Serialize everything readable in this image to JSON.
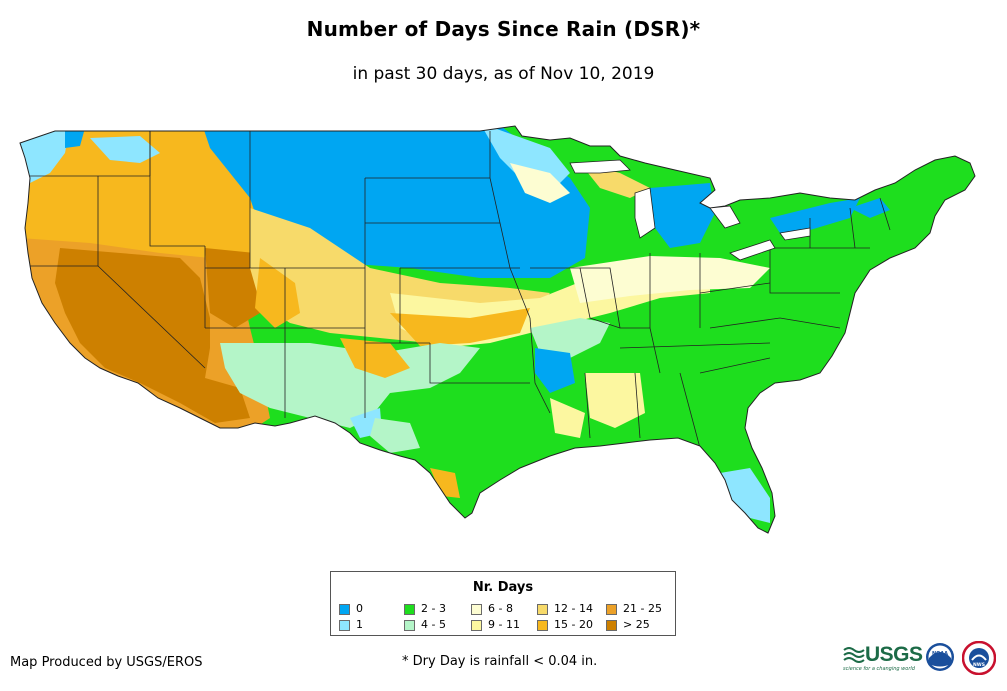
{
  "title": "Number of Days Since Rain (DSR)*",
  "subtitle": "in past 30 days, as of Nov 10, 2019",
  "legend": {
    "title": "Nr. Days",
    "items": [
      {
        "label": "0",
        "color": "#00a6f2"
      },
      {
        "label": "1",
        "color": "#8ee6ff"
      },
      {
        "label": "2 - 3",
        "color": "#1ede1e"
      },
      {
        "label": "4 - 5",
        "color": "#b4f5c8"
      },
      {
        "label": "6 - 8",
        "color": "#fdfdd2"
      },
      {
        "label": "9 - 11",
        "color": "#fcf7a0"
      },
      {
        "label": "12 - 14",
        "color": "#f7da6a"
      },
      {
        "label": "15 - 20",
        "color": "#f7b81e"
      },
      {
        "label": "21 - 25",
        "color": "#eca128"
      },
      {
        "label": "> 25",
        "color": "#cd8000"
      }
    ]
  },
  "credit": "Map Produced by USGS/EROS",
  "footnote": "* Dry Day is rainfall < 0.04 in.",
  "logos": {
    "usgs_text": "USGS",
    "usgs_tagline": "science for a changing world",
    "noaa_text": "NOAA",
    "nws_text": "NWS"
  },
  "map": {
    "region": "Contiguous United States",
    "colors": {
      "d0": "#00a6f2",
      "d1": "#8ee6ff",
      "d2": "#1ede1e",
      "d4": "#b4f5c8",
      "d6": "#fdfdd2",
      "d9": "#fcf7a0",
      "d12": "#f7da6a",
      "d15": "#f7b81e",
      "d21": "#eca128",
      "d25": "#cd8000",
      "border": "#222222"
    }
  }
}
